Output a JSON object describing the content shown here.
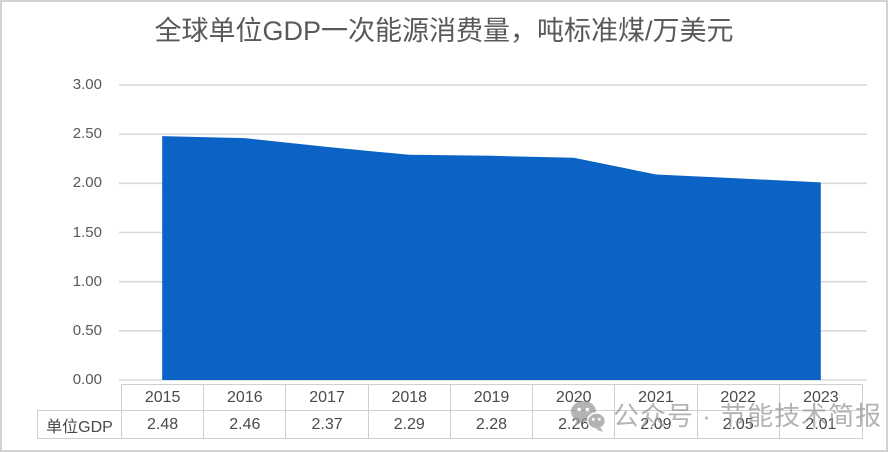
{
  "title": "全球单位GDP一次能源消费量，吨标准煤/万美元",
  "chart_data": {
    "type": "area",
    "title": "全球单位GDP一次能源消费量，吨标准煤/万美元",
    "categories": [
      "2015",
      "2016",
      "2017",
      "2018",
      "2019",
      "2020",
      "2021",
      "2022",
      "2023"
    ],
    "series": [
      {
        "name": "单位GDP",
        "values": [
          2.48,
          2.46,
          2.37,
          2.29,
          2.28,
          2.26,
          2.09,
          2.05,
          2.01
        ]
      }
    ],
    "ylim": [
      0,
      3
    ],
    "yticks": [
      3.0,
      2.5,
      2.0,
      1.5,
      1.0,
      0.5,
      0.0
    ],
    "ytick_decimals": 2,
    "grid": true,
    "legend_position": "none",
    "data_table_shown": true,
    "colors": {
      "area_fill": "#0b63c5",
      "gridline": "#d9d9d9",
      "axis_text": "#595959",
      "title_text": "#595959",
      "table_text": "#4a4a4a",
      "table_border": "#cfcfcf"
    }
  },
  "data_table": {
    "row_label": "单位GDP",
    "columns": [
      "2015",
      "2016",
      "2017",
      "2018",
      "2019",
      "2020",
      "2021",
      "2022",
      "2023"
    ],
    "values_display": [
      "2.48",
      "2.46",
      "2.37",
      "2.29",
      "2.28",
      "2.26",
      "2.09",
      "2.05",
      "2.01"
    ]
  },
  "watermark": {
    "icon": "wechat-icon",
    "text": "公众号 · 节能技术简报"
  }
}
